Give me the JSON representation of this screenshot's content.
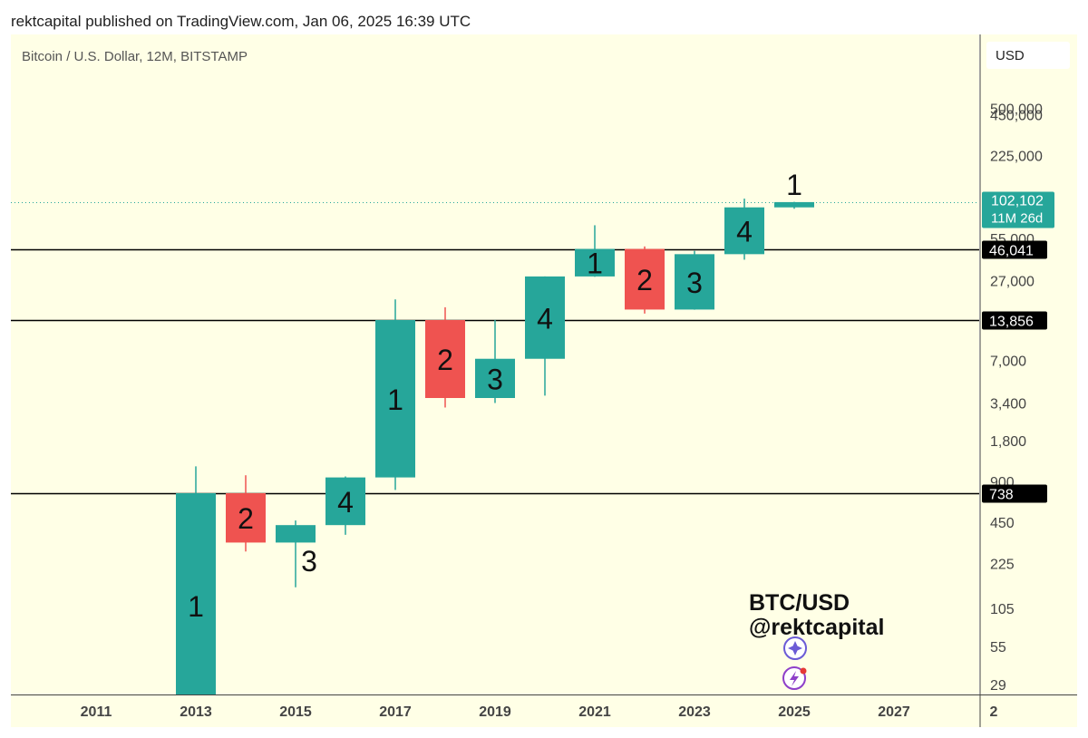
{
  "header": {
    "published": "rektcapital published on TradingView.com, Jan 06, 2025 16:39 UTC"
  },
  "chart": {
    "symbol_title": "Bitcoin / U.S. Dollar, 12M, BITSTAMP",
    "currency": "USD",
    "watermark_line1": "BTC/USD",
    "watermark_line2": "@rektcapital",
    "countdown": "11M 26d"
  },
  "colors": {
    "background": "#ffffe6",
    "up": "#26a69a",
    "down": "#ef5350",
    "level_label_bg": "#000000",
    "current_label_bg": "#26a69a",
    "level_line": "#000000",
    "icon_purple": "#6b5bd6"
  },
  "chart_data": {
    "type": "candlestick",
    "title": "Bitcoin / U.S. Dollar, 12M, BITSTAMP",
    "y_scale": "log",
    "y_ticks": [
      "500,000",
      "450,000",
      "225,000",
      "55,000",
      "27,000",
      "7,000",
      "3,400",
      "1,800",
      "900",
      "450",
      "225",
      "105",
      "55",
      "29"
    ],
    "x_ticks": [
      "2011",
      "2013",
      "2015",
      "2017",
      "2019",
      "2021",
      "2023",
      "2025",
      "2027",
      "2"
    ],
    "candles": [
      {
        "year": 2013,
        "open": 13,
        "high": 1163,
        "low": 13,
        "close": 738,
        "label": "1"
      },
      {
        "year": 2014,
        "open": 738,
        "high": 1000,
        "low": 275,
        "close": 320,
        "label": "2"
      },
      {
        "year": 2015,
        "open": 320,
        "high": 465,
        "low": 150,
        "close": 430,
        "label": "3"
      },
      {
        "year": 2016,
        "open": 430,
        "high": 980,
        "low": 365,
        "close": 964,
        "label": "4"
      },
      {
        "year": 2017,
        "open": 964,
        "high": 19666,
        "low": 780,
        "close": 13856,
        "label": "1"
      },
      {
        "year": 2018,
        "open": 13856,
        "high": 17200,
        "low": 3150,
        "close": 3700,
        "label": "2"
      },
      {
        "year": 2019,
        "open": 3700,
        "high": 13880,
        "low": 3400,
        "close": 7190,
        "label": "3"
      },
      {
        "year": 2020,
        "open": 7190,
        "high": 29000,
        "low": 3850,
        "close": 28990,
        "label": "4"
      },
      {
        "year": 2021,
        "open": 28990,
        "high": 69000,
        "low": 28800,
        "close": 46200,
        "label": "1"
      },
      {
        "year": 2022,
        "open": 46200,
        "high": 48200,
        "low": 15460,
        "close": 16550,
        "label": "2"
      },
      {
        "year": 2023,
        "open": 16550,
        "high": 44700,
        "low": 16500,
        "close": 42280,
        "label": "3"
      },
      {
        "year": 2024,
        "open": 42280,
        "high": 108300,
        "low": 38500,
        "close": 93400,
        "label": "4"
      },
      {
        "year": 2025,
        "open": 93400,
        "high": 102500,
        "low": 91200,
        "close": 102102,
        "label": "1"
      }
    ],
    "horizontal_levels": [
      {
        "value": 46041,
        "label": "46,041"
      },
      {
        "value": 13856,
        "label": "13,856"
      },
      {
        "value": 738,
        "label": "738"
      }
    ],
    "current_price": {
      "value": 102102,
      "label": "102,102"
    }
  }
}
